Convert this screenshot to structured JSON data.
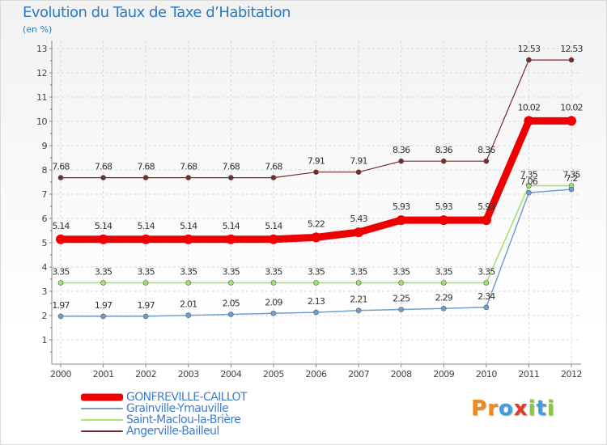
{
  "title": "Evolution du Taux de Taxe d’Habitation",
  "subtitle": "(en %)",
  "logo": {
    "letters": [
      "P",
      "r",
      "o",
      "x",
      "i",
      "t",
      "i"
    ],
    "colors": [
      "#f08a1c",
      "#f08a1c",
      "#3aa0e0",
      "#e23a2a",
      "#8cc63f",
      "#3aa0e0",
      "#8cc63f"
    ]
  },
  "colors": {
    "grid": "#d9d9d9",
    "axis": "#888888",
    "label": "#444444"
  },
  "chart_data": {
    "type": "line",
    "x": [
      "2000",
      "2001",
      "2002",
      "2003",
      "2004",
      "2005",
      "2006",
      "2007",
      "2008",
      "2009",
      "2010",
      "2011",
      "2012"
    ],
    "ylim": [
      0,
      13
    ],
    "yticks": [
      "1",
      "2",
      "3",
      "4",
      "5",
      "6",
      "7",
      "8",
      "9",
      "10",
      "11",
      "12",
      "13"
    ],
    "grid": true,
    "legend_position": "bottom-left",
    "series": [
      {
        "name": "GONFREVILLE-CAILLOT",
        "color": "#ee0000",
        "values": [
          5.14,
          5.14,
          5.14,
          5.14,
          5.14,
          5.14,
          5.22,
          5.43,
          5.93,
          5.93,
          5.93,
          10.02,
          10.02
        ],
        "labels": [
          "5.14",
          "5.14",
          "5.14",
          "5.14",
          "5.14",
          "5.14",
          "5.22",
          "5.43",
          "5.93",
          "5.93",
          "5.93",
          "10.02",
          "10.02"
        ]
      },
      {
        "name": "Grainville-Ymauville",
        "color": "#6f9fd0",
        "values": [
          1.97,
          1.97,
          1.97,
          2.01,
          2.05,
          2.09,
          2.13,
          2.21,
          2.25,
          2.29,
          2.34,
          7.06,
          7.2
        ],
        "labels": [
          "1.97",
          "1.97",
          "1.97",
          "2.01",
          "2.05",
          "2.09",
          "2.13",
          "2.21",
          "2.25",
          "2.29",
          "2.34",
          "7.06",
          "7.2"
        ]
      },
      {
        "name": "Saint-Maclou-la-Brière",
        "color": "#9ee36a",
        "values": [
          3.35,
          3.35,
          3.35,
          3.35,
          3.35,
          3.35,
          3.35,
          3.35,
          3.35,
          3.35,
          3.35,
          7.35,
          7.35
        ],
        "labels": [
          "3.35",
          "3.35",
          "3.35",
          "3.35",
          "3.35",
          "3.35",
          "3.35",
          "3.35",
          "3.35",
          "3.35",
          "3.35",
          "7.35",
          "7.35"
        ]
      },
      {
        "name": "Angerville-Bailleul",
        "color": "#7a2a2a",
        "values": [
          7.68,
          7.68,
          7.68,
          7.68,
          7.68,
          7.68,
          7.91,
          7.91,
          8.36,
          8.36,
          8.36,
          12.53,
          12.53
        ],
        "labels": [
          "7.68",
          "7.68",
          "7.68",
          "7.68",
          "7.68",
          "7.68",
          "7.91",
          "7.91",
          "8.36",
          "8.36",
          "8.36",
          "12.53",
          "12.53"
        ]
      }
    ]
  }
}
